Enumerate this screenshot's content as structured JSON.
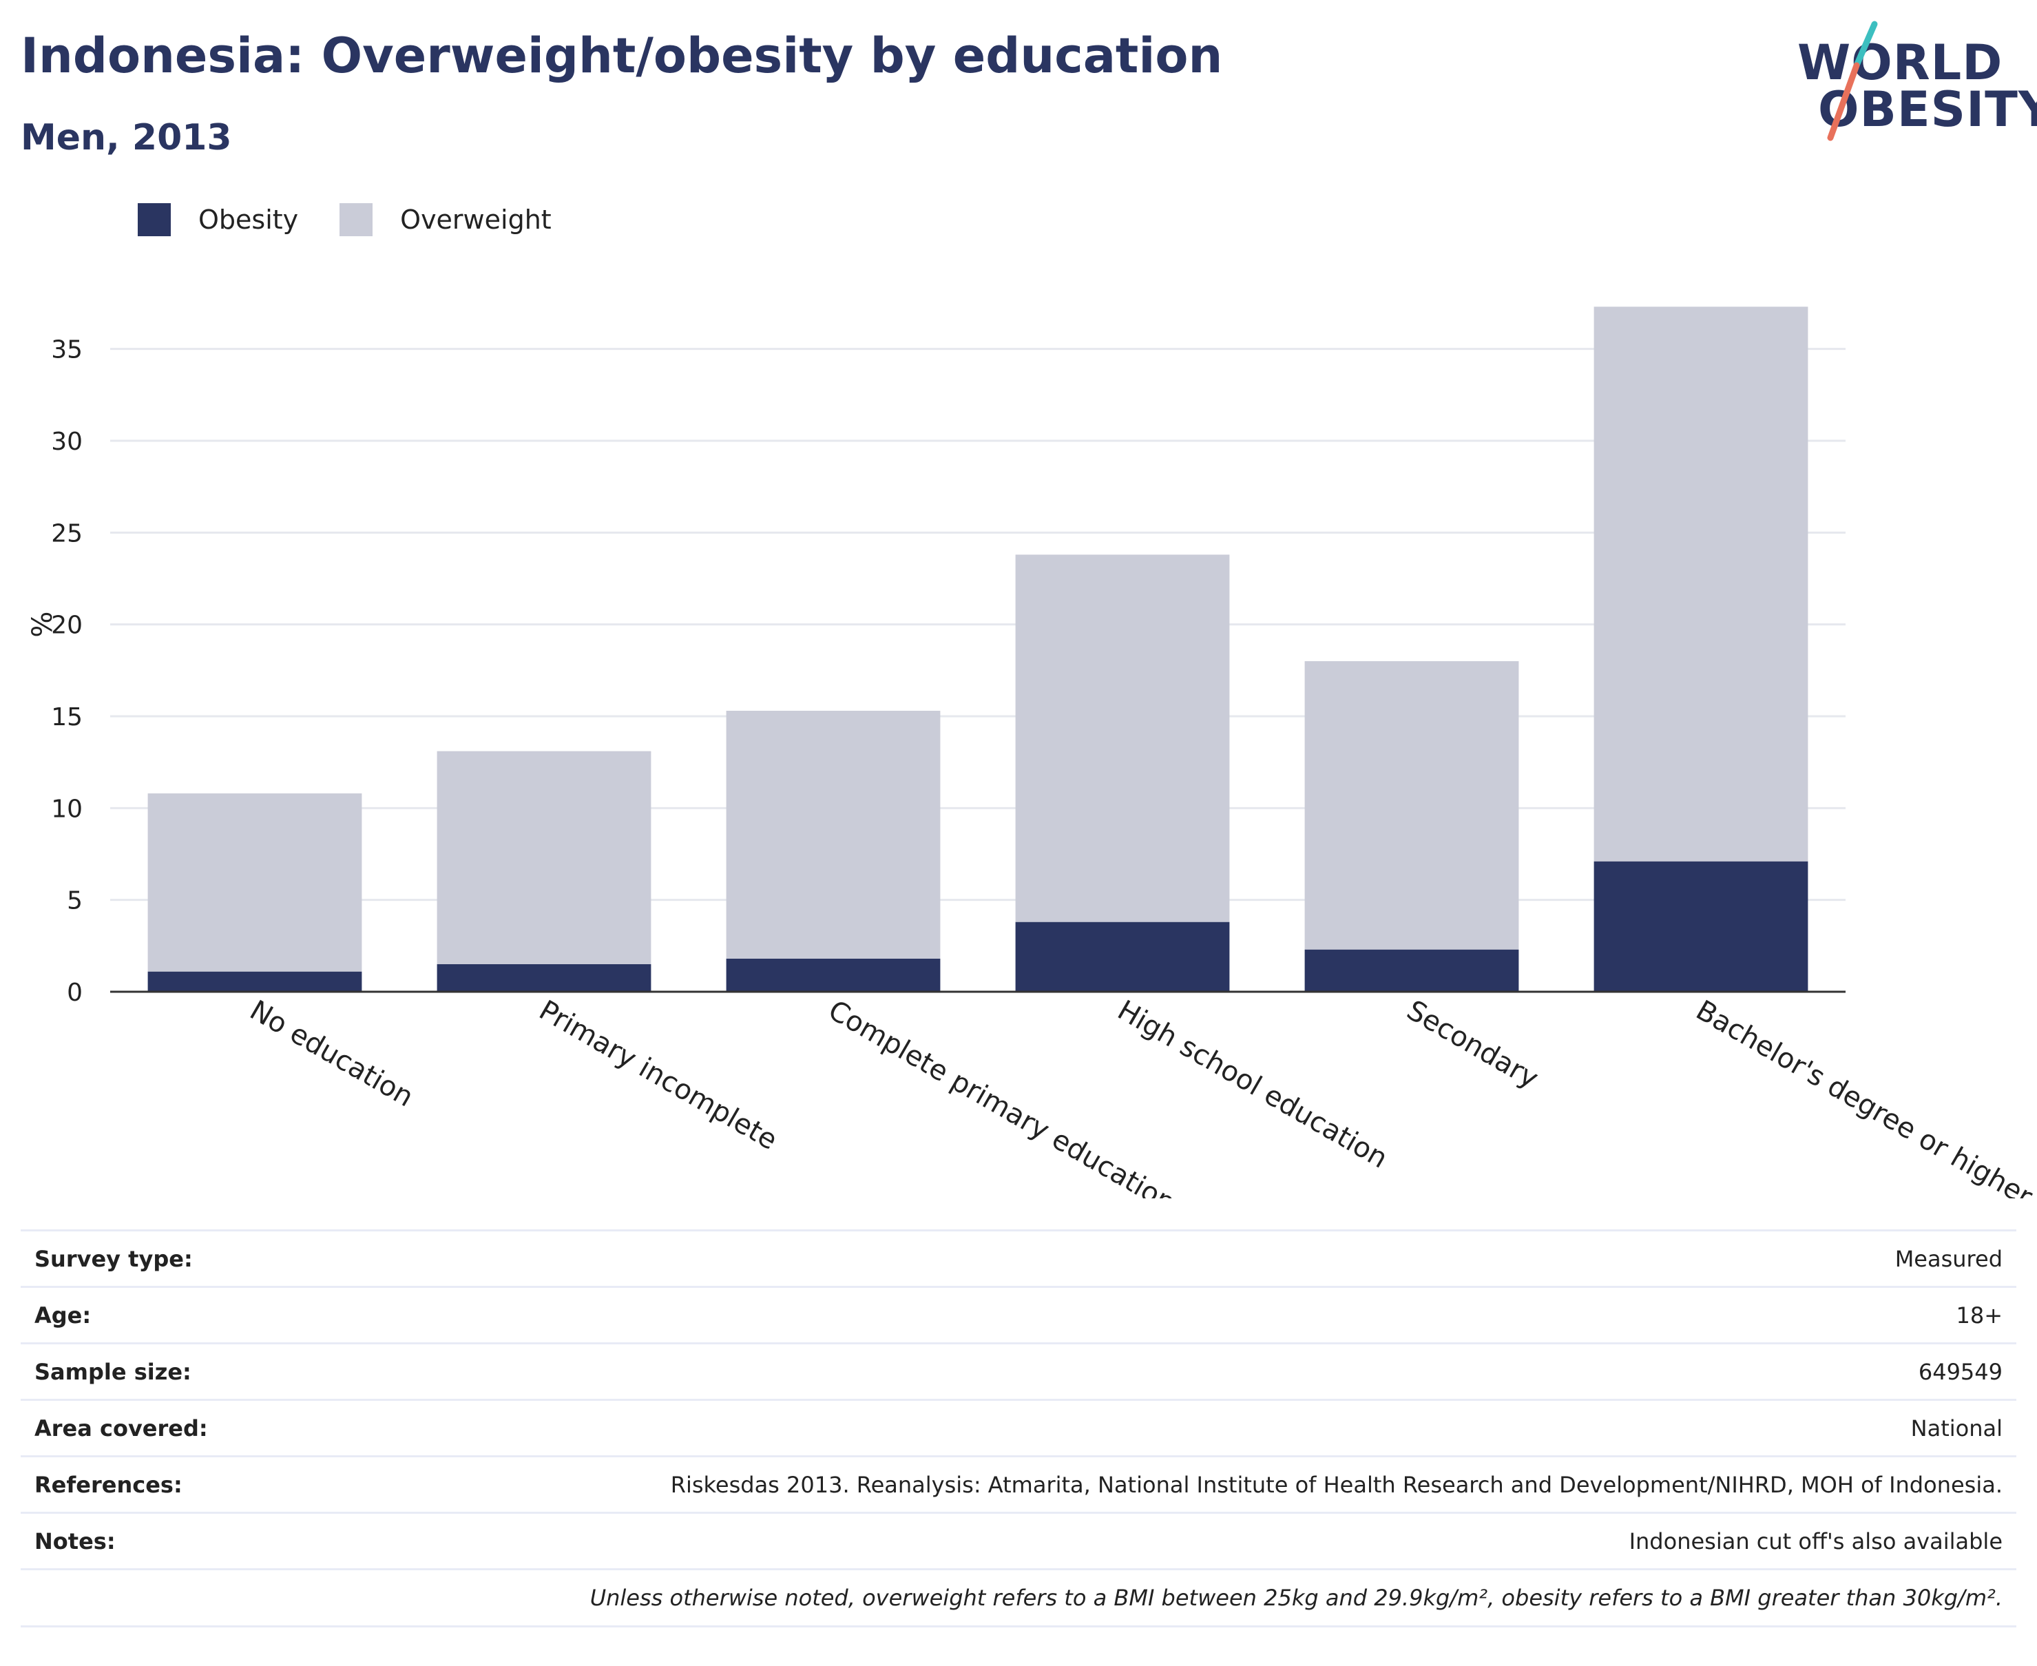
{
  "header": {
    "title": "Indonesia: Overweight/obesity by education",
    "subtitle": "Men, 2013"
  },
  "logo": {
    "line1": "WORLD",
    "line2": "OBESITY",
    "accent_colors": [
      "#3cbfc0",
      "#e8715b"
    ]
  },
  "legend": [
    {
      "label": "Obesity",
      "color": "#2a3561"
    },
    {
      "label": "Overweight",
      "color": "#caccd8"
    }
  ],
  "chart_data": {
    "type": "bar",
    "stacked": true,
    "categories": [
      "No education",
      "Primary incomplete",
      "Complete primary education",
      "High school education",
      "Secondary",
      "Bachelor's degree or higher"
    ],
    "series": [
      {
        "name": "Obesity",
        "color": "#2a3561",
        "values": [
          1.1,
          1.5,
          1.8,
          3.8,
          2.3,
          7.1
        ]
      },
      {
        "name": "Overweight",
        "color": "#caccd8",
        "values": [
          9.7,
          11.6,
          13.5,
          20.0,
          15.7,
          30.2
        ]
      }
    ],
    "ylabel": "%",
    "yticks": [
      0,
      5,
      10,
      15,
      20,
      25,
      30,
      35
    ],
    "ylim": [
      0,
      37.5
    ],
    "grid": true,
    "legend_position": "top-left"
  },
  "info": {
    "rows": [
      {
        "label": "Survey type:",
        "value": "Measured"
      },
      {
        "label": "Age:",
        "value": "18+"
      },
      {
        "label": "Sample size:",
        "value": "649549"
      },
      {
        "label": "Area covered:",
        "value": "National"
      },
      {
        "label": "References:",
        "value": "Riskesdas 2013. Reanalysis: Atmarita, National Institute of Health Research and Development/NIHRD, MOH of Indonesia."
      },
      {
        "label": "Notes:",
        "value": "Indonesian cut off's also available"
      }
    ],
    "footnote": "Unless otherwise noted, overweight refers to a BMI between 25kg and 29.9kg/m², obesity refers to a BMI greater than 30kg/m²."
  }
}
